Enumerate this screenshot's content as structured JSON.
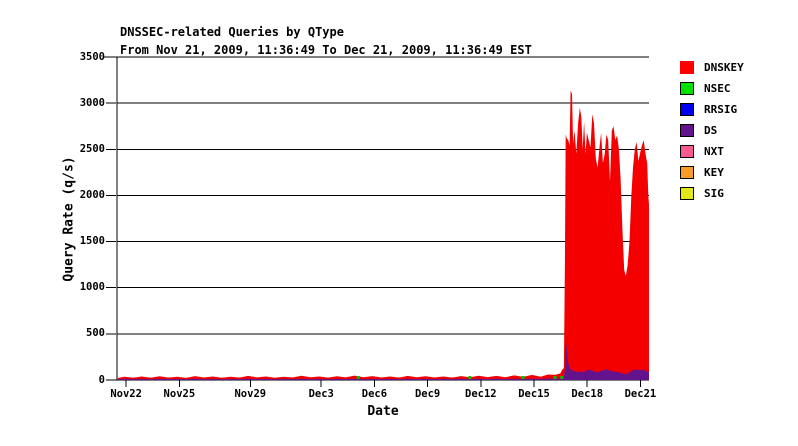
{
  "header": {
    "title": "DNSSEC-related Queries by QType",
    "subtitle": "From Nov 21, 2009, 11:36:49 To Dec 21, 2009, 11:36:49 EST"
  },
  "legend": {
    "items": [
      {
        "label": "DNSKEY",
        "color": "#ff0000",
        "border": "#ff0000"
      },
      {
        "label": "NSEC",
        "color": "#00e000",
        "border": "#000000"
      },
      {
        "label": "RRSIG",
        "color": "#0000ee",
        "border": "#000000"
      },
      {
        "label": "DS",
        "color": "#65128d",
        "border": "#000000"
      },
      {
        "label": "NXT",
        "color": "#f85c8e",
        "border": "#000000"
      },
      {
        "label": "KEY",
        "color": "#f99d29",
        "border": "#000000"
      },
      {
        "label": "SIG",
        "color": "#e5e817",
        "border": "#000000"
      }
    ]
  },
  "chart_data": {
    "type": "area",
    "title": "DNSSEC-related Queries by QType",
    "subtitle": "From Nov 21, 2009, 11:36:49 To Dec 21, 2009, 11:36:49 EST",
    "xlabel": "Date",
    "ylabel": "Query Rate (q/s)",
    "ylim": [
      0,
      3500
    ],
    "x_axis_days": [
      0,
      30
    ],
    "grid": "horizontal",
    "legend_position": "right",
    "y_ticks": [
      0,
      500,
      1000,
      1500,
      2000,
      2500,
      3000,
      3500
    ],
    "x_ticks": [
      {
        "label": "Nov22",
        "day": 0.517
      },
      {
        "label": "Nov25",
        "day": 3.517
      },
      {
        "label": "Nov29",
        "day": 7.517
      },
      {
        "label": "Dec3",
        "day": 11.517
      },
      {
        "label": "Dec6",
        "day": 14.517
      },
      {
        "label": "Dec9",
        "day": 17.517
      },
      {
        "label": "Dec12",
        "day": 20.517
      },
      {
        "label": "Dec15",
        "day": 23.517
      },
      {
        "label": "Dec18",
        "day": 26.517
      },
      {
        "label": "Dec21",
        "day": 29.517
      }
    ],
    "colors": {
      "dnskey": "#f40000",
      "ds": "#65128d",
      "nsec": "#00c400"
    },
    "series_note": "samples are [day_offset_from_Nov21_1136, total_qps_top_DNSKEY_stack, DS_qps]",
    "samples": [
      [
        0.05,
        22,
        10
      ],
      [
        0.4,
        36,
        12
      ],
      [
        0.9,
        25,
        9
      ],
      [
        1.4,
        38,
        12
      ],
      [
        1.9,
        24,
        9
      ],
      [
        2.4,
        40,
        13
      ],
      [
        2.9,
        26,
        10
      ],
      [
        3.4,
        36,
        12
      ],
      [
        3.9,
        23,
        9
      ],
      [
        4.4,
        42,
        13
      ],
      [
        4.9,
        27,
        10
      ],
      [
        5.4,
        38,
        12
      ],
      [
        5.9,
        24,
        9
      ],
      [
        6.4,
        35,
        11
      ],
      [
        6.9,
        26,
        10
      ],
      [
        7.4,
        44,
        13
      ],
      [
        7.9,
        28,
        10
      ],
      [
        8.4,
        38,
        12
      ],
      [
        8.9,
        25,
        9
      ],
      [
        9.4,
        36,
        12
      ],
      [
        9.9,
        27,
        10
      ],
      [
        10.4,
        46,
        14
      ],
      [
        10.9,
        30,
        10
      ],
      [
        11.4,
        38,
        12
      ],
      [
        11.9,
        26,
        9
      ],
      [
        12.4,
        40,
        12
      ],
      [
        12.9,
        28,
        10
      ],
      [
        13.4,
        48,
        14
      ],
      [
        13.9,
        30,
        10
      ],
      [
        14.4,
        42,
        12
      ],
      [
        14.9,
        27,
        10
      ],
      [
        15.4,
        38,
        12
      ],
      [
        15.9,
        26,
        9
      ],
      [
        16.4,
        44,
        13
      ],
      [
        16.9,
        29,
        10
      ],
      [
        17.4,
        40,
        12
      ],
      [
        17.9,
        27,
        10
      ],
      [
        18.4,
        38,
        12
      ],
      [
        18.9,
        26,
        10
      ],
      [
        19.4,
        42,
        13
      ],
      [
        19.9,
        30,
        10
      ],
      [
        20.4,
        46,
        13
      ],
      [
        20.9,
        31,
        10
      ],
      [
        21.4,
        44,
        13
      ],
      [
        21.9,
        30,
        10
      ],
      [
        22.4,
        50,
        14
      ],
      [
        22.9,
        34,
        11
      ],
      [
        23.4,
        55,
        15
      ],
      [
        23.9,
        36,
        12
      ],
      [
        24.3,
        60,
        16
      ],
      [
        24.7,
        55,
        15
      ],
      [
        25.0,
        70,
        16
      ],
      [
        25.1,
        110,
        24
      ],
      [
        25.2,
        130,
        30
      ],
      [
        25.26,
        1250,
        120
      ],
      [
        25.3,
        2660,
        420
      ],
      [
        25.36,
        2620,
        330
      ],
      [
        25.45,
        2600,
        180
      ],
      [
        25.52,
        2540,
        130
      ],
      [
        25.58,
        3135,
        115
      ],
      [
        25.66,
        3100,
        105
      ],
      [
        25.72,
        2560,
        100
      ],
      [
        25.8,
        2700,
        95
      ],
      [
        25.9,
        2450,
        90
      ],
      [
        26.0,
        2780,
        90
      ],
      [
        26.1,
        2950,
        95
      ],
      [
        26.18,
        2850,
        90
      ],
      [
        26.26,
        2500,
        85
      ],
      [
        26.34,
        2800,
        90
      ],
      [
        26.42,
        2450,
        95
      ],
      [
        26.5,
        2680,
        105
      ],
      [
        26.6,
        2600,
        110
      ],
      [
        26.7,
        2520,
        105
      ],
      [
        26.8,
        2880,
        100
      ],
      [
        26.9,
        2780,
        95
      ],
      [
        27.0,
        2400,
        90
      ],
      [
        27.1,
        2300,
        85
      ],
      [
        27.2,
        2500,
        90
      ],
      [
        27.3,
        2680,
        100
      ],
      [
        27.4,
        2350,
        105
      ],
      [
        27.5,
        2450,
        110
      ],
      [
        27.6,
        2660,
        115
      ],
      [
        27.7,
        2600,
        110
      ],
      [
        27.8,
        2150,
        100
      ],
      [
        27.9,
        2700,
        95
      ],
      [
        28.0,
        2750,
        95
      ],
      [
        28.1,
        2600,
        90
      ],
      [
        28.2,
        2650,
        90
      ],
      [
        28.3,
        2500,
        85
      ],
      [
        28.4,
        2180,
        80
      ],
      [
        28.5,
        1640,
        70
      ],
      [
        28.6,
        1190,
        65
      ],
      [
        28.7,
        1130,
        65
      ],
      [
        28.8,
        1250,
        70
      ],
      [
        28.9,
        1500,
        80
      ],
      [
        29.0,
        1990,
        95
      ],
      [
        29.1,
        2300,
        105
      ],
      [
        29.2,
        2500,
        110
      ],
      [
        29.3,
        2580,
        115
      ],
      [
        29.4,
        2370,
        110
      ],
      [
        29.5,
        2460,
        105
      ],
      [
        29.6,
        2540,
        110
      ],
      [
        29.7,
        2600,
        110
      ],
      [
        29.8,
        2450,
        100
      ],
      [
        29.9,
        2350,
        95
      ],
      [
        29.96,
        2000,
        90
      ],
      [
        30,
        1900,
        90
      ]
    ],
    "nsec_dots_days": [
      13.6,
      19.9,
      22.9,
      24.7,
      25.08
    ]
  }
}
